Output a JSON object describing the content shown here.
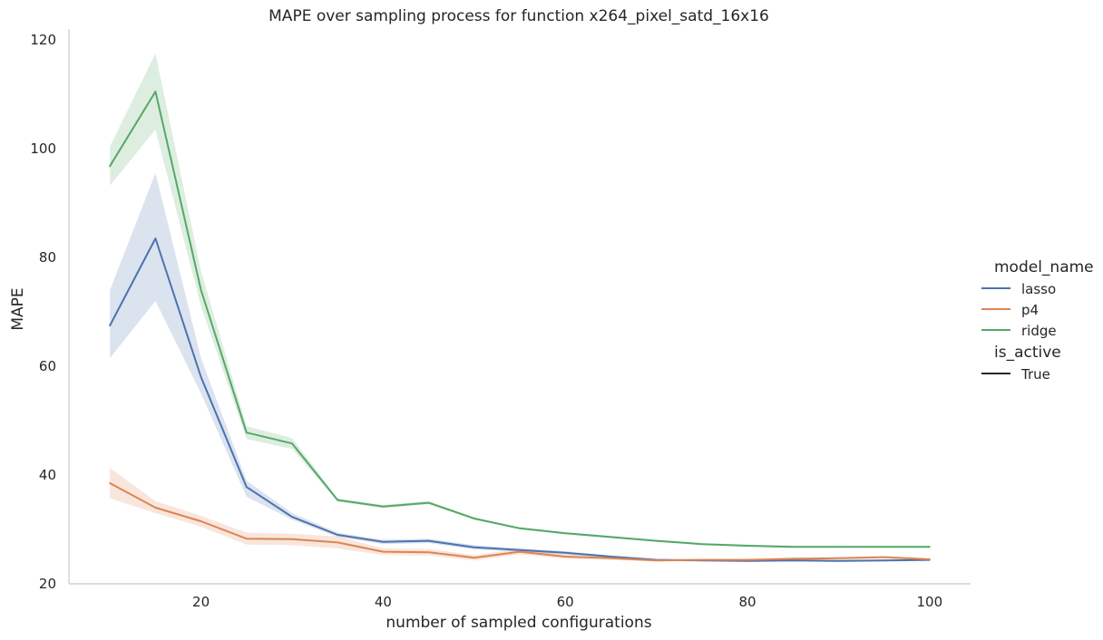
{
  "chart_data": {
    "type": "line",
    "title": "MAPE over sampling process for function x264_pixel_satd_16x16",
    "xlabel": "number of sampled configurations",
    "ylabel": "MAPE",
    "xlim": [
      5.5,
      104.5
    ],
    "ylim": [
      20,
      122
    ],
    "xticks": [
      20,
      40,
      60,
      80,
      100
    ],
    "yticks": [
      20,
      40,
      60,
      80,
      100,
      120
    ],
    "grid": false,
    "legend_position": "right",
    "legend": {
      "hue_title": "model_name",
      "style_title": "is_active",
      "style_entries": [
        {
          "label": "True",
          "color": "#262626"
        }
      ]
    },
    "x": [
      10,
      15,
      20,
      25,
      30,
      35,
      40,
      45,
      50,
      55,
      60,
      65,
      70,
      75,
      80,
      85,
      90,
      95,
      100
    ],
    "series": [
      {
        "name": "lasso",
        "color": "#4c72b0",
        "values": [
          67.5,
          83.5,
          58.0,
          37.8,
          32.3,
          29.0,
          27.7,
          27.9,
          26.7,
          26.2,
          25.7,
          25.0,
          24.4,
          24.3,
          24.2,
          24.3,
          24.2,
          24.3,
          24.4
        ],
        "lower": [
          61.5,
          72.0,
          55.0,
          36.0,
          31.8,
          28.6,
          27.3,
          27.5,
          26.3,
          25.9,
          25.4,
          24.8,
          24.2,
          24.1,
          24.0,
          24.1,
          24.0,
          24.1,
          24.2
        ],
        "upper": [
          74.0,
          95.5,
          61.5,
          39.0,
          33.0,
          29.4,
          28.1,
          28.3,
          27.1,
          26.5,
          26.0,
          25.2,
          24.6,
          24.5,
          24.4,
          24.5,
          24.4,
          24.5,
          24.6
        ]
      },
      {
        "name": "p4",
        "color": "#dd8452",
        "values": [
          38.5,
          34.0,
          31.5,
          28.3,
          28.2,
          27.6,
          25.9,
          25.8,
          24.8,
          25.9,
          25.0,
          24.7,
          24.3,
          24.4,
          24.4,
          24.6,
          24.7,
          24.9,
          24.5
        ],
        "lower": [
          35.7,
          33.0,
          30.5,
          27.2,
          27.1,
          26.5,
          25.3,
          25.2,
          24.3,
          25.4,
          24.6,
          24.4,
          24.1,
          24.2,
          24.2,
          24.4,
          24.5,
          24.7,
          24.3
        ],
        "upper": [
          41.3,
          35.2,
          32.5,
          29.4,
          29.2,
          28.7,
          26.5,
          26.4,
          25.3,
          26.4,
          25.4,
          25.0,
          24.5,
          24.6,
          24.6,
          24.8,
          24.9,
          25.1,
          24.7
        ]
      },
      {
        "name": "ridge",
        "color": "#55a868",
        "values": [
          96.8,
          110.5,
          74.0,
          47.8,
          45.8,
          35.4,
          34.2,
          34.9,
          32.0,
          30.2,
          29.3,
          28.6,
          27.9,
          27.3,
          27.0,
          26.8,
          26.8,
          26.8,
          26.8
        ],
        "lower": [
          93.2,
          103.5,
          71.0,
          46.6,
          44.8,
          35.1,
          33.9,
          34.6,
          31.8,
          30.0,
          29.1,
          28.4,
          27.7,
          27.1,
          26.8,
          26.6,
          26.6,
          26.6,
          26.6
        ],
        "upper": [
          100.4,
          117.5,
          77.5,
          49.0,
          46.8,
          35.7,
          34.5,
          35.2,
          32.2,
          30.4,
          29.5,
          28.8,
          28.1,
          27.5,
          27.2,
          27.0,
          27.0,
          27.0,
          27.0
        ]
      }
    ]
  }
}
